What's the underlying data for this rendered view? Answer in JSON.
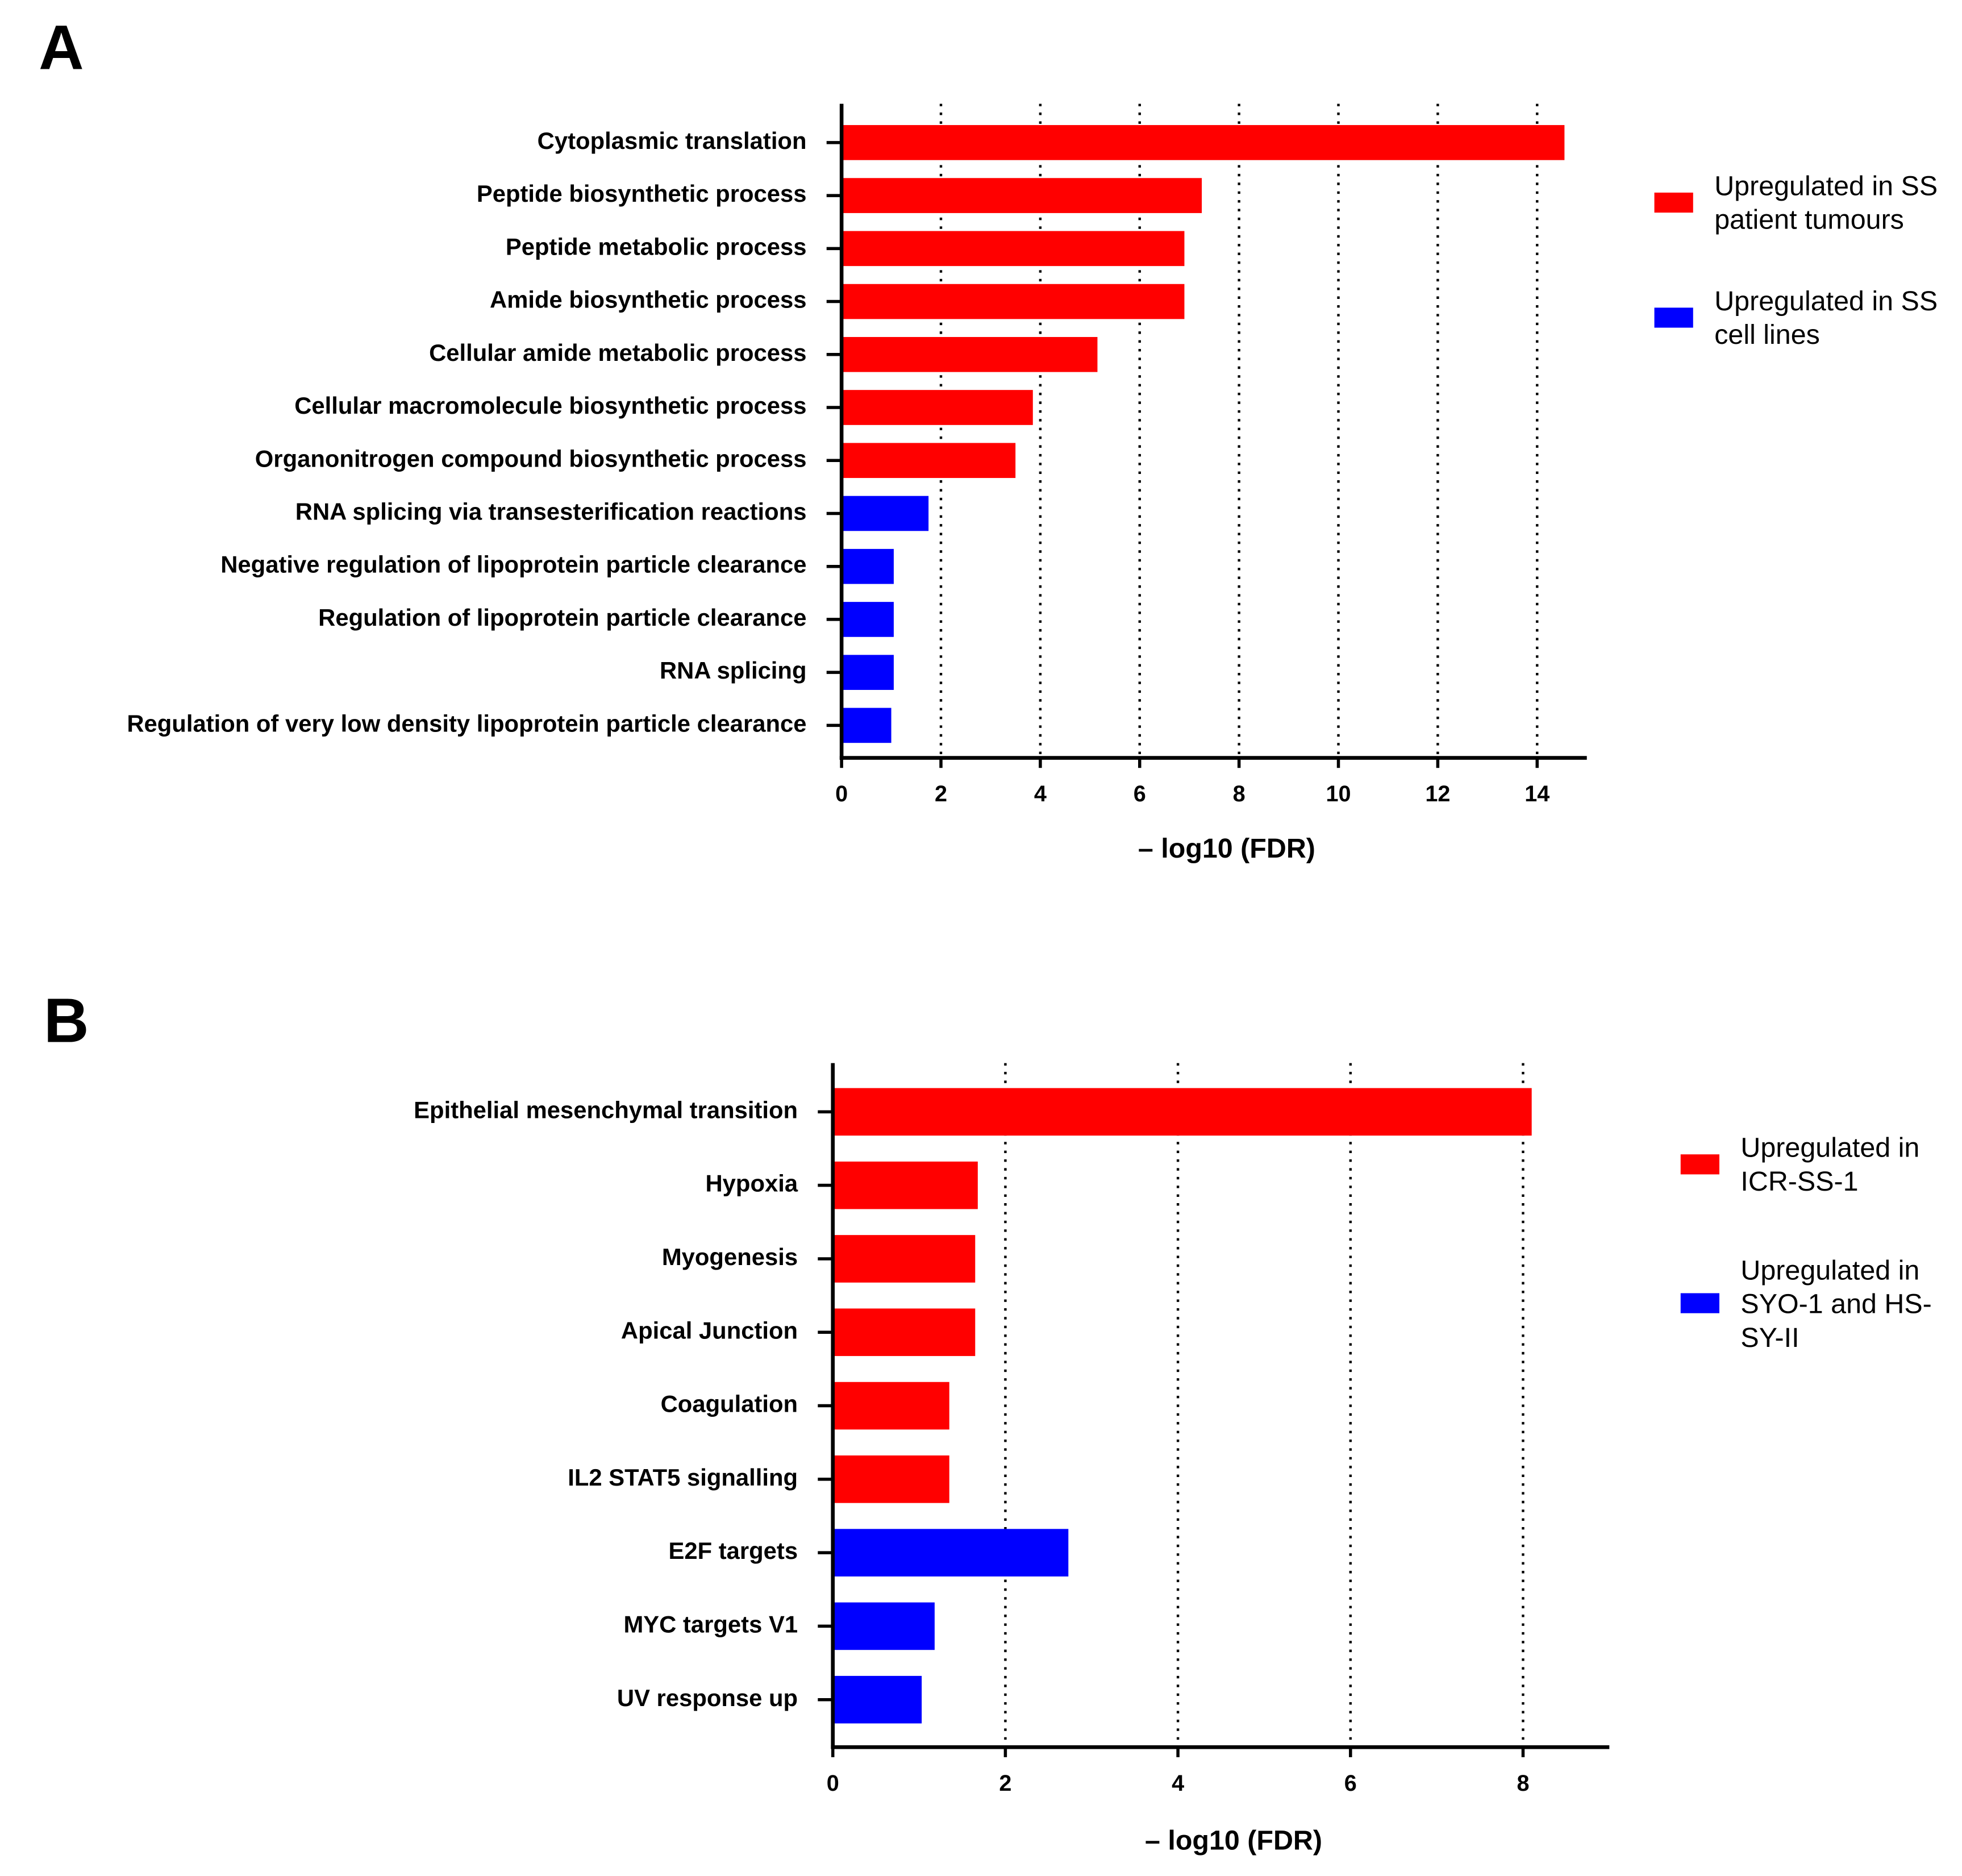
{
  "chart_data": [
    {
      "type": "bar",
      "label": "A",
      "orientation": "horizontal",
      "categories": [
        "Cytoplasmic translation",
        "Peptide biosynthetic process",
        "Peptide metabolic process",
        "Amide biosynthetic process",
        "Cellular amide metabolic process",
        "Cellular macromolecule biosynthetic process",
        "Organonitrogen compound biosynthetic process",
        "RNA splicing via transesterification reactions",
        "Negative regulation of lipoprotein particle clearance",
        "Regulation of lipoprotein particle clearance",
        "RNA splicing",
        "Regulation of very low density lipoprotein particle clearance"
      ],
      "series": [
        {
          "name": "Upregulated in SS patient tumours",
          "color": "#ff0000",
          "values": [
            14.55,
            7.25,
            6.9,
            6.9,
            5.15,
            3.85,
            3.5,
            null,
            null,
            null,
            null,
            null
          ]
        },
        {
          "name": "Upregulated in SS cell lines",
          "color": "#0000ff",
          "values": [
            null,
            null,
            null,
            null,
            null,
            null,
            null,
            1.75,
            1.05,
            1.05,
            1.05,
            1.0
          ]
        }
      ],
      "x_label": "– log10 (FDR)",
      "xlim": [
        0,
        15
      ],
      "xticks": [
        0,
        2,
        4,
        6,
        8,
        10,
        12,
        14
      ],
      "grid": true
    },
    {
      "type": "bar",
      "label": "B",
      "orientation": "horizontal",
      "categories": [
        "Epithelial mesenchymal transition",
        "Hypoxia",
        "Myogenesis",
        "Apical Junction",
        "Coagulation",
        "IL2 STAT5 signalling",
        "E2F targets",
        "MYC targets V1",
        "UV response up"
      ],
      "series": [
        {
          "name": "Upregulated in ICR-SS-1",
          "color": "#ff0000",
          "values": [
            8.1,
            1.68,
            1.65,
            1.65,
            1.35,
            1.35,
            null,
            null,
            null
          ]
        },
        {
          "name": "Upregulated in SYO-1 and HS-SY-II",
          "color": "#0000ff",
          "values": [
            null,
            null,
            null,
            null,
            null,
            null,
            2.73,
            1.18,
            1.03
          ]
        }
      ],
      "x_label": "– log10 (FDR)",
      "xlim": [
        0,
        9
      ],
      "xticks": [
        0,
        2,
        4,
        6,
        8
      ],
      "grid": true
    }
  ]
}
